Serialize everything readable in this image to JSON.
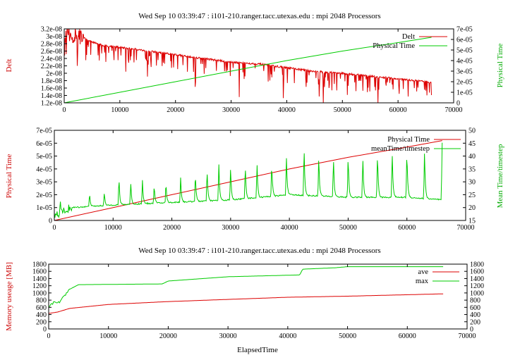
{
  "colors": {
    "series1": "#dd0000",
    "series2": "#00cc00",
    "axis": "#000000"
  },
  "chart_data": [
    {
      "type": "line",
      "title": "Wed Sep 10 03:39:47 : i101-210.ranger.tacc.utexas.edu : mpi 2048 Processors",
      "xlabel": "",
      "ylabel": "Delt",
      "y2label": "Physical Time",
      "xlim": [
        0,
        70000
      ],
      "ylim": [
        1.2e-08,
        3.2e-08
      ],
      "y2lim": [
        0,
        7e-05
      ],
      "xticks": [
        "0",
        "10000",
        "20000",
        "30000",
        "40000",
        "50000",
        "60000",
        "70000"
      ],
      "yticks": [
        "1.2e-08",
        "1.4e-08",
        "1.6e-08",
        "1.8e-08",
        "2e-08",
        "2.2e-08",
        "2.4e-08",
        "2.6e-08",
        "2.8e-08",
        "3e-08",
        "3.2e-08"
      ],
      "y2ticks": [
        "0",
        "1e-05",
        "2e-05",
        "3e-05",
        "4e-05",
        "5e-05",
        "6e-05",
        "7e-05"
      ],
      "legend": "top-right",
      "series": [
        {
          "name": "Delt",
          "axis": "y",
          "x": [
            0,
            500,
            1500,
            3000,
            5000,
            7000,
            10000,
            13000,
            15000,
            20000,
            25000,
            30000,
            35000,
            40000,
            45000,
            50000,
            55000,
            60000,
            66000
          ],
          "values": [
            2.8e-08,
            3.1e-08,
            3.05e-08,
            3e-08,
            2.85e-08,
            2.75e-08,
            2.7e-08,
            2.65e-08,
            2.6e-08,
            2.5e-08,
            2.4e-08,
            2.3e-08,
            2.25e-08,
            2.15e-08,
            2.05e-08,
            2e-08,
            1.92e-08,
            1.85e-08,
            1.75e-08
          ]
        },
        {
          "name": "Physical Time",
          "axis": "y2",
          "x": [
            0,
            10000,
            20000,
            30000,
            40000,
            50000,
            60000,
            66000
          ],
          "values": [
            0,
            1e-05,
            2e-05,
            3e-05,
            4e-05,
            4.9e-05,
            5.7e-05,
            6.2e-05
          ]
        }
      ]
    },
    {
      "type": "line",
      "title": "",
      "xlabel": "",
      "ylabel": "Physical Time",
      "y2label": "Mean Time/timestep",
      "xlim": [
        0,
        70000
      ],
      "ylim": [
        0,
        7e-05
      ],
      "y2lim": [
        15,
        50
      ],
      "xticks": [
        "0",
        "10000",
        "20000",
        "30000",
        "40000",
        "50000",
        "60000",
        "70000"
      ],
      "yticks": [
        "0",
        "1e-05",
        "2e-05",
        "3e-05",
        "4e-05",
        "5e-05",
        "6e-05",
        "7e-05"
      ],
      "y2ticks": [
        "15",
        "20",
        "25",
        "30",
        "35",
        "40",
        "45",
        "50"
      ],
      "legend": "top-right",
      "series": [
        {
          "name": "Physical Time",
          "axis": "y",
          "x": [
            0,
            10000,
            20000,
            30000,
            40000,
            50000,
            60000,
            66000
          ],
          "values": [
            0,
            1e-05,
            2e-05,
            3e-05,
            4e-05,
            4.9e-05,
            5.7e-05,
            6.2e-05
          ]
        },
        {
          "name": "meanTime/timestep",
          "axis": "y2",
          "x": [
            0,
            2000,
            3000,
            10000,
            20000,
            30000,
            40000,
            50000,
            60000,
            66000
          ],
          "values": [
            17,
            19,
            20,
            21,
            22,
            23,
            25,
            24,
            24,
            23
          ],
          "peaks_x": [
            1000,
            6000,
            8500,
            11000,
            13000,
            15000,
            17000,
            19000,
            21500,
            24000,
            26000,
            28000,
            30000,
            32500,
            34500,
            37000,
            39500,
            42500,
            45000,
            47500,
            50000,
            52500,
            55000,
            57500,
            60000,
            63000,
            66000
          ],
          "peaks": [
            22,
            26,
            26,
            32,
            30,
            31,
            29,
            30,
            32,
            34,
            35,
            37,
            36,
            37,
            37,
            38,
            40,
            44,
            41,
            40,
            41,
            40,
            42,
            42,
            43,
            43,
            45
          ]
        }
      ]
    },
    {
      "type": "line",
      "title": "Wed Sep 10 03:39:47 : i101-210.ranger.tacc.utexas.edu : mpi 2048 Processors",
      "xlabel": "ElapsedTime",
      "ylabel": "Memory useage [MB]",
      "y2label": "",
      "xlim": [
        0,
        70000
      ],
      "ylim": [
        0,
        1800
      ],
      "y2lim": [
        0,
        1800
      ],
      "xticks": [
        "0",
        "10000",
        "20000",
        "30000",
        "40000",
        "50000",
        "60000",
        "70000"
      ],
      "yticks": [
        "0",
        "200",
        "400",
        "600",
        "800",
        "1000",
        "1200",
        "1400",
        "1600",
        "1800"
      ],
      "y2ticks": [
        "0",
        "200",
        "400",
        "600",
        "800",
        "1000",
        "1200",
        "1400",
        "1600",
        "1800"
      ],
      "legend": "top-right",
      "series": [
        {
          "name": "ave",
          "axis": "y",
          "x": [
            0,
            1500,
            3500,
            10000,
            20000,
            30000,
            40000,
            50000,
            60000,
            66000
          ],
          "values": [
            430,
            470,
            570,
            680,
            760,
            820,
            880,
            910,
            950,
            975
          ]
        },
        {
          "name": "max",
          "axis": "y",
          "x": [
            0,
            1000,
            1800,
            3500,
            5000,
            19000,
            20000,
            30000,
            42000,
            42500,
            48000,
            50000,
            66000
          ],
          "values": [
            620,
            750,
            750,
            1100,
            1230,
            1250,
            1330,
            1450,
            1500,
            1660,
            1700,
            1730,
            1730
          ]
        }
      ]
    }
  ]
}
